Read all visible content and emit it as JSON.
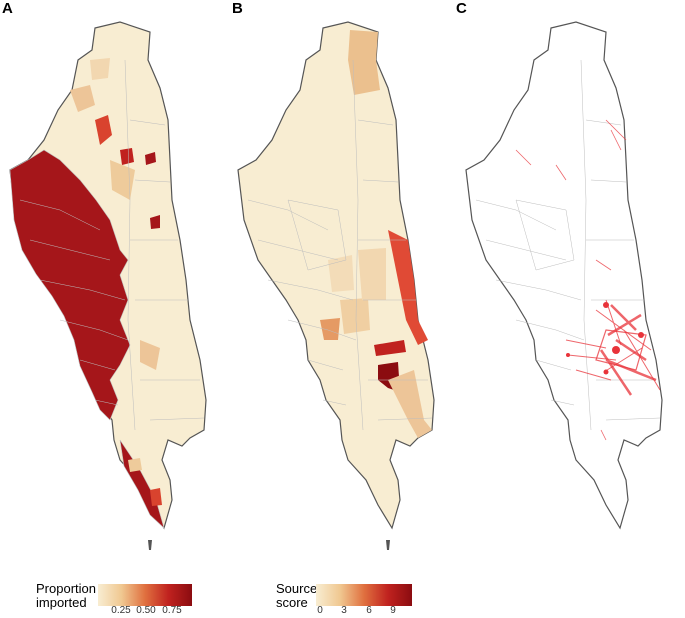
{
  "panels": [
    {
      "letter": "A",
      "map": "proportion-imported"
    },
    {
      "letter": "B",
      "map": "source-score"
    },
    {
      "letter": "C",
      "map": "movement-network"
    }
  ],
  "legend_a": {
    "title_line1": "Proportion",
    "title_line2": "imported",
    "ticks": [
      "0.25",
      "0.50",
      "0.75"
    ],
    "color_low": "#f7ecd0",
    "color_high": "#8b0c10"
  },
  "legend_b": {
    "title_line1": "Source",
    "title_line2": "score",
    "ticks": [
      "0",
      "3",
      "6",
      "9"
    ],
    "color_low": "#f7ecd0",
    "color_high": "#8b0c10"
  },
  "colors": {
    "boundary": "#bdbdbd",
    "outline": "#555555",
    "network": "#e8333a"
  }
}
